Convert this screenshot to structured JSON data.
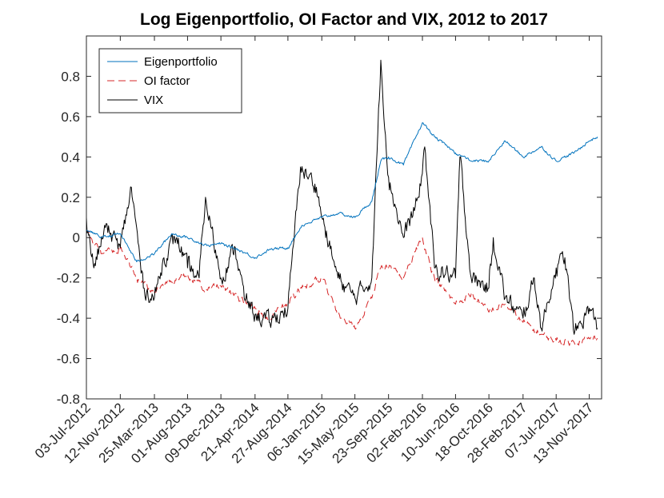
{
  "chart_data": {
    "type": "line",
    "title": "Log Eigenportfolio, OI Factor and VIX, 2012 to 2017",
    "xlabel": "",
    "ylabel": "",
    "ylim": [
      -0.8,
      1.0
    ],
    "yticks": [
      "-0.8",
      "-0.6",
      "-0.4",
      "-0.2",
      "0",
      "0.2",
      "0.4",
      "0.6",
      "0.8"
    ],
    "xlim": [
      "2012-07-03",
      "2017-12-31"
    ],
    "xticks": [
      "03-Jul-2012",
      "12-Nov-2012",
      "25-Mar-2013",
      "01-Aug-2013",
      "09-Dec-2013",
      "21-Apr-2014",
      "27-Aug-2014",
      "06-Jan-2015",
      "15-May-2015",
      "23-Sep-2015",
      "02-Feb-2016",
      "10-Jun-2016",
      "18-Oct-2016",
      "28-Feb-2017",
      "07-Jul-2017",
      "13-Nov-2017"
    ],
    "legend_position": "top-left",
    "grid": false,
    "series": [
      {
        "name": "Eigenportfolio",
        "color": "#0072BD",
        "style": "solid",
        "x": [
          "2012-07-03",
          "2012-09-01",
          "2012-11-12",
          "2013-01-15",
          "2013-03-25",
          "2013-06-01",
          "2013-08-01",
          "2013-10-15",
          "2013-12-09",
          "2014-02-15",
          "2014-04-21",
          "2014-06-15",
          "2014-08-27",
          "2014-10-20",
          "2015-01-06",
          "2015-03-10",
          "2015-05-15",
          "2015-07-20",
          "2015-08-24",
          "2015-09-23",
          "2015-11-20",
          "2016-02-02",
          "2016-03-20",
          "2016-06-10",
          "2016-08-10",
          "2016-10-18",
          "2016-12-20",
          "2017-02-28",
          "2017-05-10",
          "2017-07-07",
          "2017-09-15",
          "2017-11-13",
          "2017-12-15"
        ],
        "y": [
          0.04,
          0.0,
          0.02,
          -0.12,
          -0.08,
          0.02,
          0.0,
          -0.04,
          -0.03,
          -0.06,
          -0.1,
          -0.06,
          -0.05,
          0.06,
          0.1,
          0.12,
          0.1,
          0.18,
          0.38,
          0.4,
          0.36,
          0.57,
          0.5,
          0.42,
          0.38,
          0.38,
          0.48,
          0.4,
          0.45,
          0.38,
          0.42,
          0.48,
          0.5
        ]
      },
      {
        "name": "OI factor",
        "color": "#D62728",
        "style": "dashed",
        "x": [
          "2012-07-03",
          "2012-09-01",
          "2012-11-12",
          "2013-01-15",
          "2013-03-25",
          "2013-06-01",
          "2013-08-01",
          "2013-10-15",
          "2013-12-09",
          "2014-02-15",
          "2014-04-21",
          "2014-06-15",
          "2014-08-27",
          "2014-10-20",
          "2015-01-06",
          "2015-03-10",
          "2015-05-15",
          "2015-07-20",
          "2015-08-24",
          "2015-09-23",
          "2015-11-20",
          "2016-02-02",
          "2016-03-20",
          "2016-06-10",
          "2016-08-10",
          "2016-10-18",
          "2016-12-20",
          "2017-02-28",
          "2017-05-10",
          "2017-07-07",
          "2017-09-15",
          "2017-11-13",
          "2017-12-15"
        ],
        "y": [
          0.04,
          -0.08,
          -0.05,
          -0.2,
          -0.27,
          -0.22,
          -0.18,
          -0.26,
          -0.24,
          -0.3,
          -0.35,
          -0.4,
          -0.32,
          -0.25,
          -0.2,
          -0.38,
          -0.45,
          -0.3,
          -0.15,
          -0.15,
          -0.2,
          0.0,
          -0.2,
          -0.33,
          -0.28,
          -0.37,
          -0.33,
          -0.42,
          -0.48,
          -0.51,
          -0.52,
          -0.5,
          -0.5
        ]
      },
      {
        "name": "VIX",
        "color": "#000000",
        "style": "solid",
        "x": [
          "2012-07-03",
          "2012-08-01",
          "2012-09-15",
          "2012-11-12",
          "2012-12-25",
          "2013-02-10",
          "2013-03-25",
          "2013-05-01",
          "2013-06-20",
          "2013-08-01",
          "2013-09-15",
          "2013-10-10",
          "2013-12-09",
          "2014-02-03",
          "2014-03-10",
          "2014-04-21",
          "2014-06-15",
          "2014-08-27",
          "2014-10-15",
          "2014-12-16",
          "2015-01-06",
          "2015-03-10",
          "2015-05-15",
          "2015-07-20",
          "2015-08-24",
          "2015-09-23",
          "2015-11-20",
          "2016-01-20",
          "2016-02-11",
          "2016-03-20",
          "2016-06-10",
          "2016-06-27",
          "2016-08-10",
          "2016-10-18",
          "2016-11-04",
          "2016-12-20",
          "2017-02-28",
          "2017-04-13",
          "2017-05-10",
          "2017-07-07",
          "2017-08-10",
          "2017-09-15",
          "2017-11-13",
          "2017-12-15"
        ],
        "y": [
          0.1,
          -0.15,
          0.05,
          -0.05,
          0.25,
          -0.25,
          -0.3,
          -0.1,
          0.0,
          -0.15,
          -0.2,
          0.2,
          -0.2,
          -0.05,
          -0.3,
          -0.38,
          -0.42,
          -0.35,
          0.35,
          0.25,
          0.1,
          -0.2,
          -0.3,
          -0.2,
          0.88,
          0.3,
          0.0,
          0.2,
          0.45,
          -0.15,
          -0.2,
          0.4,
          -0.2,
          -0.25,
          0.0,
          -0.3,
          -0.4,
          -0.2,
          -0.45,
          -0.15,
          -0.1,
          -0.48,
          -0.35,
          -0.45
        ]
      }
    ]
  }
}
